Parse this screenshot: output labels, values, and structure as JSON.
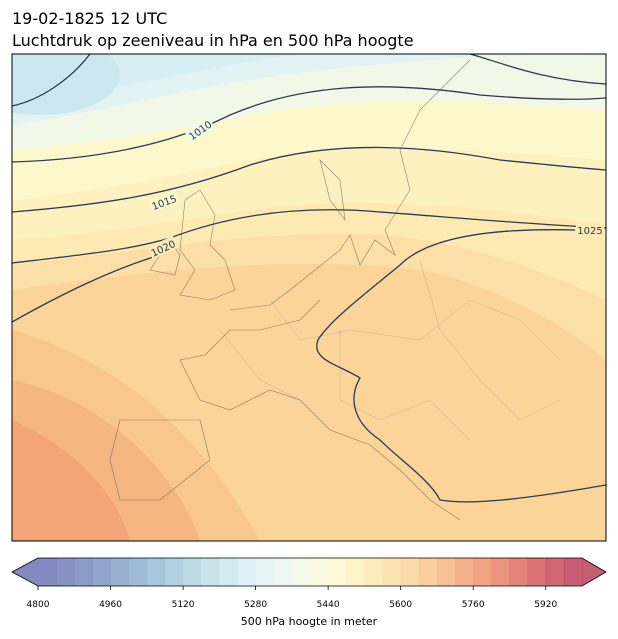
{
  "header": {
    "date": "19-02-1825 12 UTC",
    "title": "Luchtdruk op zeeniveau in hPa en 500 hPa hoogte"
  },
  "isobars": [
    1010,
    1015,
    1020,
    1025
  ],
  "colorbar": {
    "label": "500 hPa hoogte in meter",
    "lim": [
      4800,
      6000
    ],
    "ticks": [
      4800,
      4960,
      5120,
      5280,
      5440,
      5600,
      5760,
      5920
    ],
    "colors": [
      "#6c75b4",
      "#7280b9",
      "#788bbe",
      "#7f97c3",
      "#86a3c9",
      "#8eafcf",
      "#99bcd6",
      "#a6c8dd",
      "#b2d4e3",
      "#bfdfea",
      "#cbe8f0",
      "#d7eff4",
      "#e2f3f6",
      "#ebf6f2",
      "#f2f8e8",
      "#f8f9da",
      "#fcf8cc",
      "#fdf2bf",
      "#fde9b2",
      "#fcdfa6",
      "#fbd49a",
      "#f9c68d",
      "#f6b682",
      "#f3a578",
      "#ef936e",
      "#e98066",
      "#e06d61",
      "#d55b5d",
      "#c94b5b",
      "#bc405a"
    ]
  }
}
